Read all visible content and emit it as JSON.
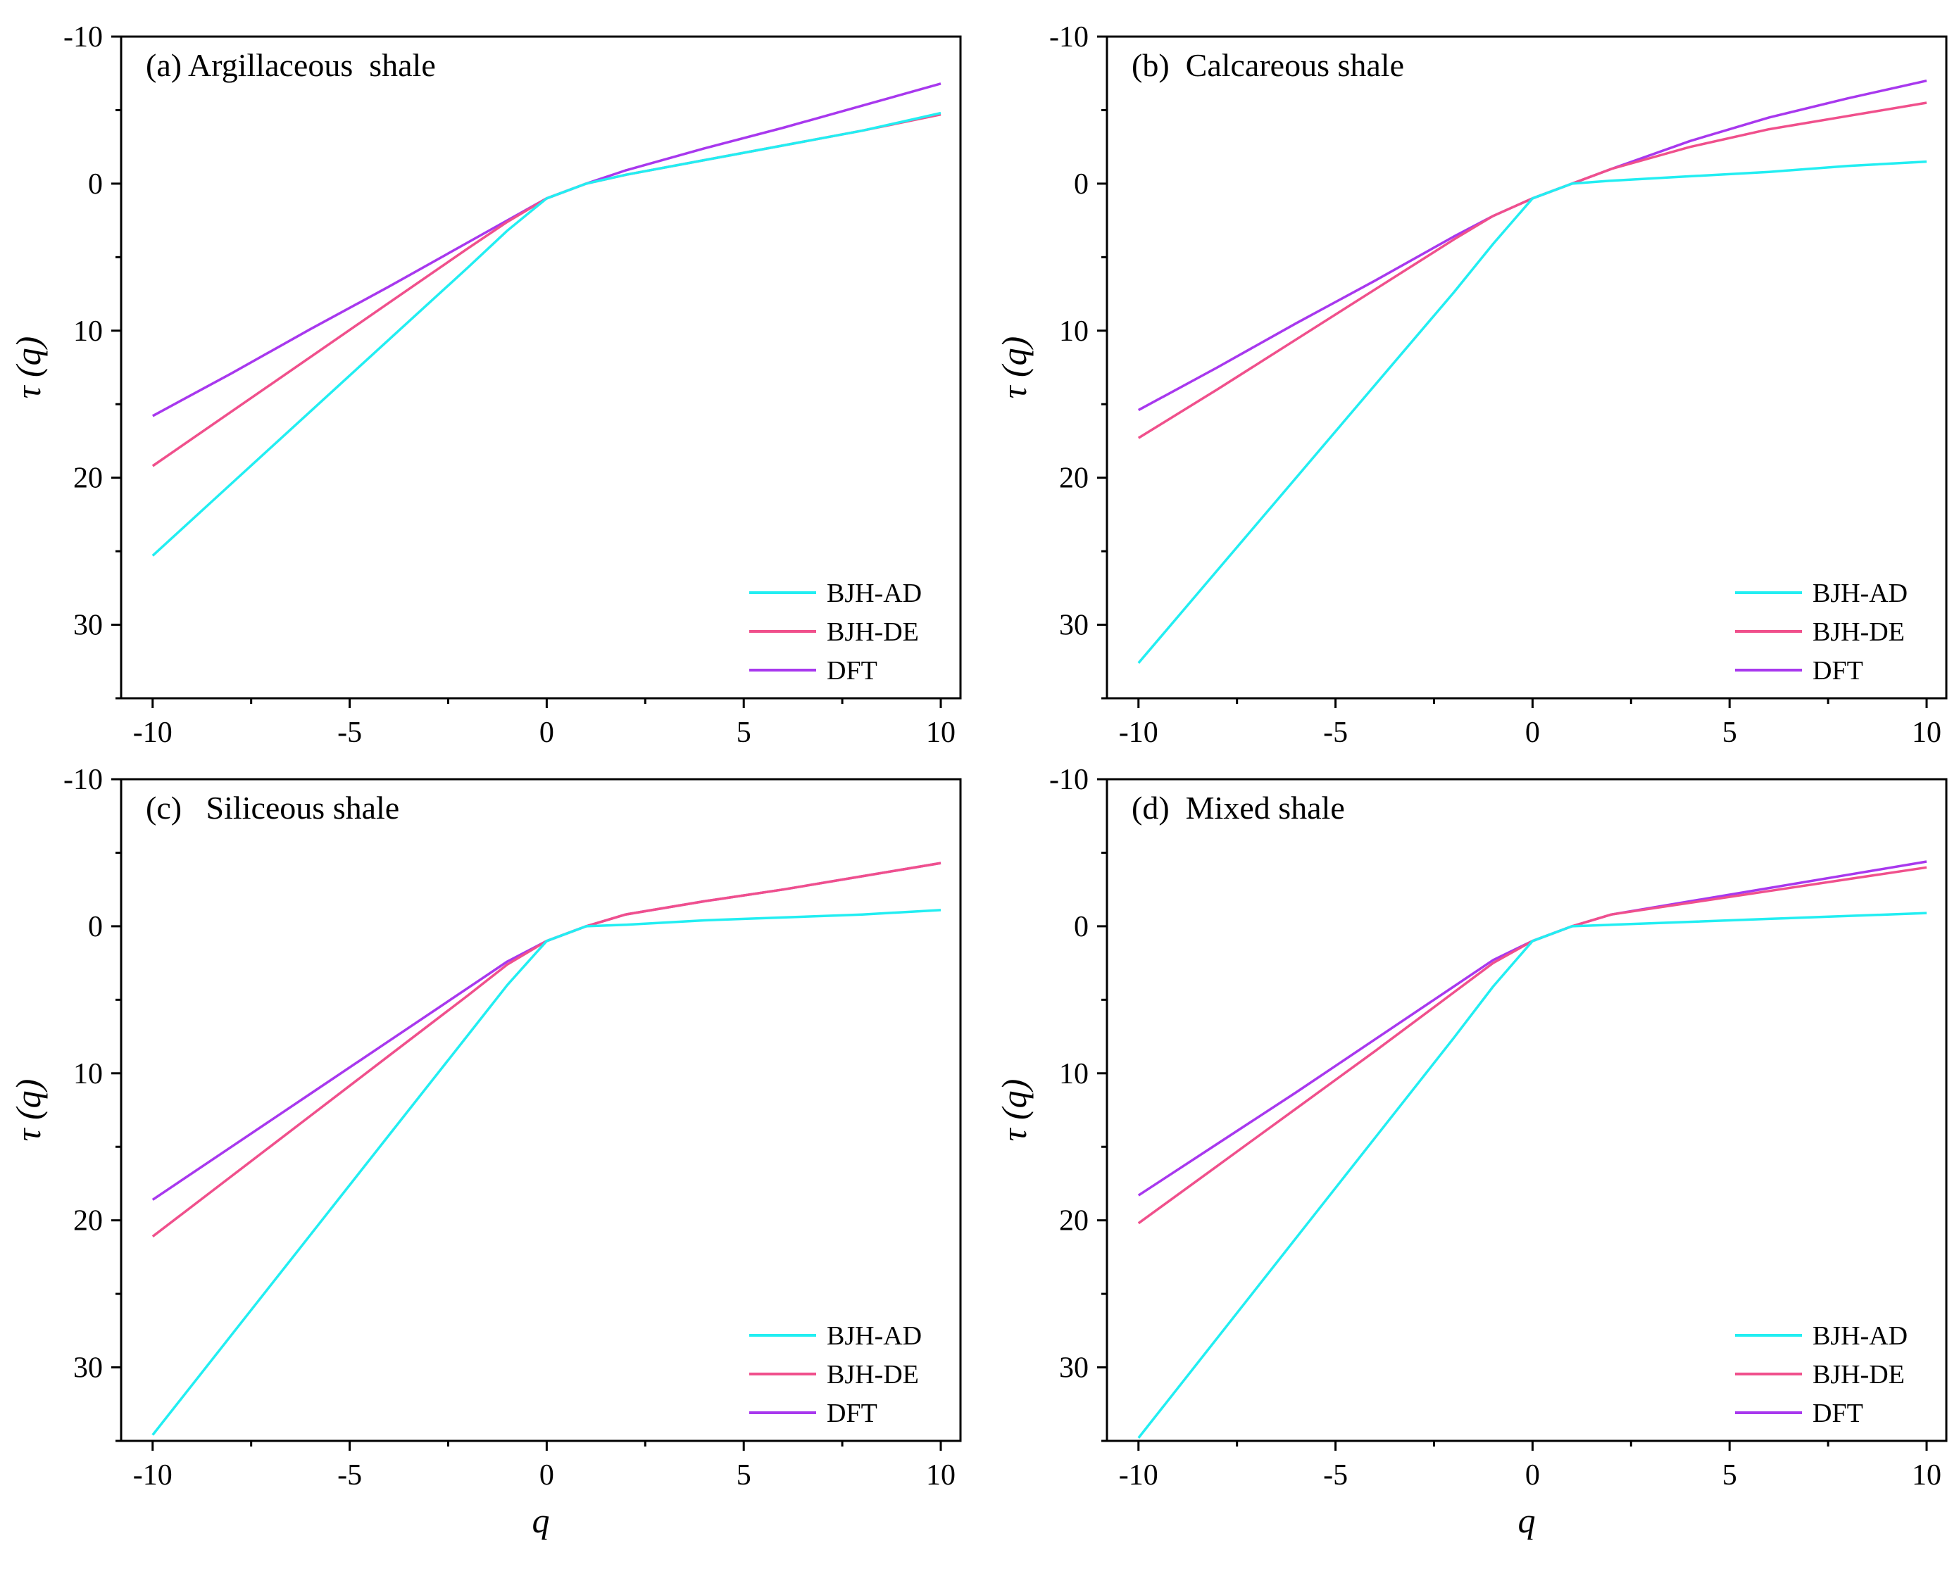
{
  "colors": {
    "BJH-AD": "#22eef2",
    "BJH-DE": "#f0508c",
    "DFT": "#a838ee"
  },
  "chart_data": [
    {
      "type": "line",
      "title": "(a) Argillaceous  shale",
      "xlabel": "q",
      "ylabel": "τ (q)",
      "xlim": [
        -10.8,
        10.5
      ],
      "ylim": [
        -10,
        35
      ],
      "y_inverted": true,
      "xticks": [
        "-10",
        "-5",
        "0",
        "5",
        "10"
      ],
      "yticks": [
        "-10",
        "0",
        "10",
        "20",
        "30"
      ],
      "legend_position": "bottom-right",
      "x": [
        -10,
        -8,
        -6,
        -4,
        -2,
        -1,
        0,
        1,
        2,
        4,
        6,
        8,
        10
      ],
      "series": [
        {
          "name": "BJH-AD",
          "values": [
            25.3,
            20.4,
            15.5,
            10.6,
            5.7,
            3.2,
            1.0,
            0.0,
            -0.6,
            -1.6,
            -2.6,
            -3.6,
            -4.8
          ]
        },
        {
          "name": "BJH-DE",
          "values": [
            19.2,
            15.5,
            11.8,
            8.1,
            4.4,
            2.6,
            1.0,
            0.0,
            -0.6,
            -1.6,
            -2.6,
            -3.6,
            -4.7
          ]
        },
        {
          "name": "DFT",
          "values": [
            15.8,
            12.9,
            9.9,
            7.0,
            4.0,
            2.5,
            1.0,
            0.0,
            -0.9,
            -2.4,
            -3.8,
            -5.3,
            -6.8
          ]
        }
      ]
    },
    {
      "type": "line",
      "title": "(b)  Calcareous shale",
      "xlabel": "q",
      "ylabel": "τ (q)",
      "xlim": [
        -10.8,
        10.5
      ],
      "ylim": [
        -10,
        35
      ],
      "y_inverted": true,
      "xticks": [
        "-10",
        "-5",
        "0",
        "5",
        "10"
      ],
      "yticks": [
        "-10",
        "0",
        "10",
        "20",
        "30"
      ],
      "legend_position": "bottom-right",
      "x": [
        -10,
        -8,
        -6,
        -4,
        -2,
        -1,
        0,
        1,
        2,
        4,
        6,
        8,
        10
      ],
      "series": [
        {
          "name": "BJH-AD",
          "values": [
            32.6,
            26.3,
            20.0,
            13.7,
            7.4,
            4.1,
            1.0,
            0.0,
            -0.2,
            -0.5,
            -0.8,
            -1.2,
            -1.5
          ]
        },
        {
          "name": "BJH-DE",
          "values": [
            17.3,
            14.0,
            10.6,
            7.2,
            3.8,
            2.2,
            1.0,
            0.0,
            -1.0,
            -2.5,
            -3.7,
            -4.6,
            -5.5
          ]
        },
        {
          "name": "DFT",
          "values": [
            15.4,
            12.5,
            9.5,
            6.6,
            3.6,
            2.2,
            1.0,
            0.0,
            -1.0,
            -2.9,
            -4.5,
            -5.8,
            -7.0
          ]
        }
      ]
    },
    {
      "type": "line",
      "title": "(c)   Siliceous shale",
      "xlabel": "q",
      "ylabel": "τ (q)",
      "xlim": [
        -10.8,
        10.5
      ],
      "ylim": [
        -10,
        35
      ],
      "y_inverted": true,
      "xticks": [
        "-10",
        "-5",
        "0",
        "5",
        "10"
      ],
      "yticks": [
        "-10",
        "0",
        "10",
        "20",
        "30"
      ],
      "legend_position": "bottom-right",
      "x": [
        -10,
        -8,
        -6,
        -4,
        -2,
        -1,
        0,
        1,
        2,
        4,
        6,
        8,
        10
      ],
      "series": [
        {
          "name": "BJH-AD",
          "values": [
            34.6,
            27.8,
            21.0,
            14.2,
            7.4,
            4.0,
            1.0,
            0.0,
            -0.1,
            -0.4,
            -0.6,
            -0.8,
            -1.1
          ]
        },
        {
          "name": "BJH-DE",
          "values": [
            21.1,
            17.0,
            12.9,
            8.8,
            4.7,
            2.6,
            1.0,
            0.0,
            -0.8,
            -1.7,
            -2.5,
            -3.4,
            -4.3
          ]
        },
        {
          "name": "DFT",
          "values": [
            18.6,
            15.0,
            11.4,
            7.8,
            4.2,
            2.4,
            1.0,
            0.0,
            -0.8,
            -1.7,
            -2.5,
            -3.4,
            -4.3
          ]
        }
      ]
    },
    {
      "type": "line",
      "title": "(d)  Mixed shale",
      "xlabel": "q",
      "ylabel": "τ (q)",
      "xlim": [
        -10.8,
        10.5
      ],
      "ylim": [
        -10,
        35
      ],
      "y_inverted": true,
      "xticks": [
        "-10",
        "-5",
        "0",
        "5",
        "10"
      ],
      "yticks": [
        "-10",
        "0",
        "10",
        "20",
        "30"
      ],
      "legend_position": "bottom-right",
      "x": [
        -10,
        -8,
        -6,
        -4,
        -2,
        -1,
        0,
        1,
        2,
        4,
        6,
        8,
        10
      ],
      "series": [
        {
          "name": "BJH-AD",
          "values": [
            34.8,
            28.0,
            21.2,
            14.4,
            7.6,
            4.1,
            1.0,
            0.0,
            -0.1,
            -0.3,
            -0.5,
            -0.7,
            -0.9
          ]
        },
        {
          "name": "BJH-DE",
          "values": [
            20.2,
            16.3,
            12.4,
            8.5,
            4.5,
            2.5,
            1.0,
            0.0,
            -0.8,
            -1.6,
            -2.4,
            -3.2,
            -4.0
          ]
        },
        {
          "name": "DFT",
          "values": [
            18.3,
            14.8,
            11.3,
            7.7,
            4.1,
            2.3,
            1.0,
            0.0,
            -0.8,
            -1.7,
            -2.6,
            -3.5,
            -4.4
          ]
        }
      ]
    }
  ]
}
